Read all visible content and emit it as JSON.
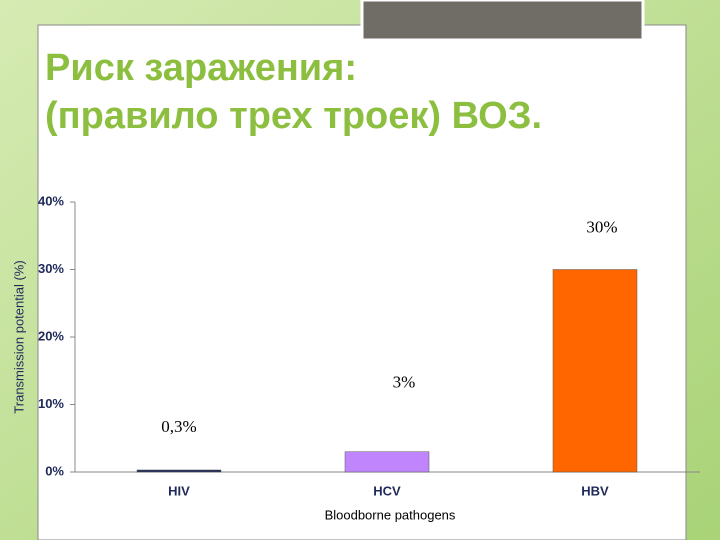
{
  "chart_data": {
    "type": "bar",
    "title": [
      "Риск заражения:",
      "(правило трех троек) ВОЗ."
    ],
    "x_label": "Bloodborne pathogens",
    "y_label": "Transmission potential (%)",
    "categories": [
      "HIV",
      "HCV",
      "HBV"
    ],
    "values": [
      0.3,
      3,
      30
    ],
    "value_labels": [
      "0,3%",
      "3%",
      "30%"
    ],
    "colors": [
      "#1f2a5a",
      "#c084fc",
      "#ff6600"
    ],
    "ylim": [
      0,
      40
    ],
    "yticks": [
      {
        "value": 0,
        "label": "0%"
      },
      {
        "value": 10,
        "label": "10%"
      },
      {
        "value": 20,
        "label": "20%"
      },
      {
        "value": 30,
        "label": "30%"
      },
      {
        "value": 40,
        "label": "40%"
      }
    ],
    "grid": false
  }
}
